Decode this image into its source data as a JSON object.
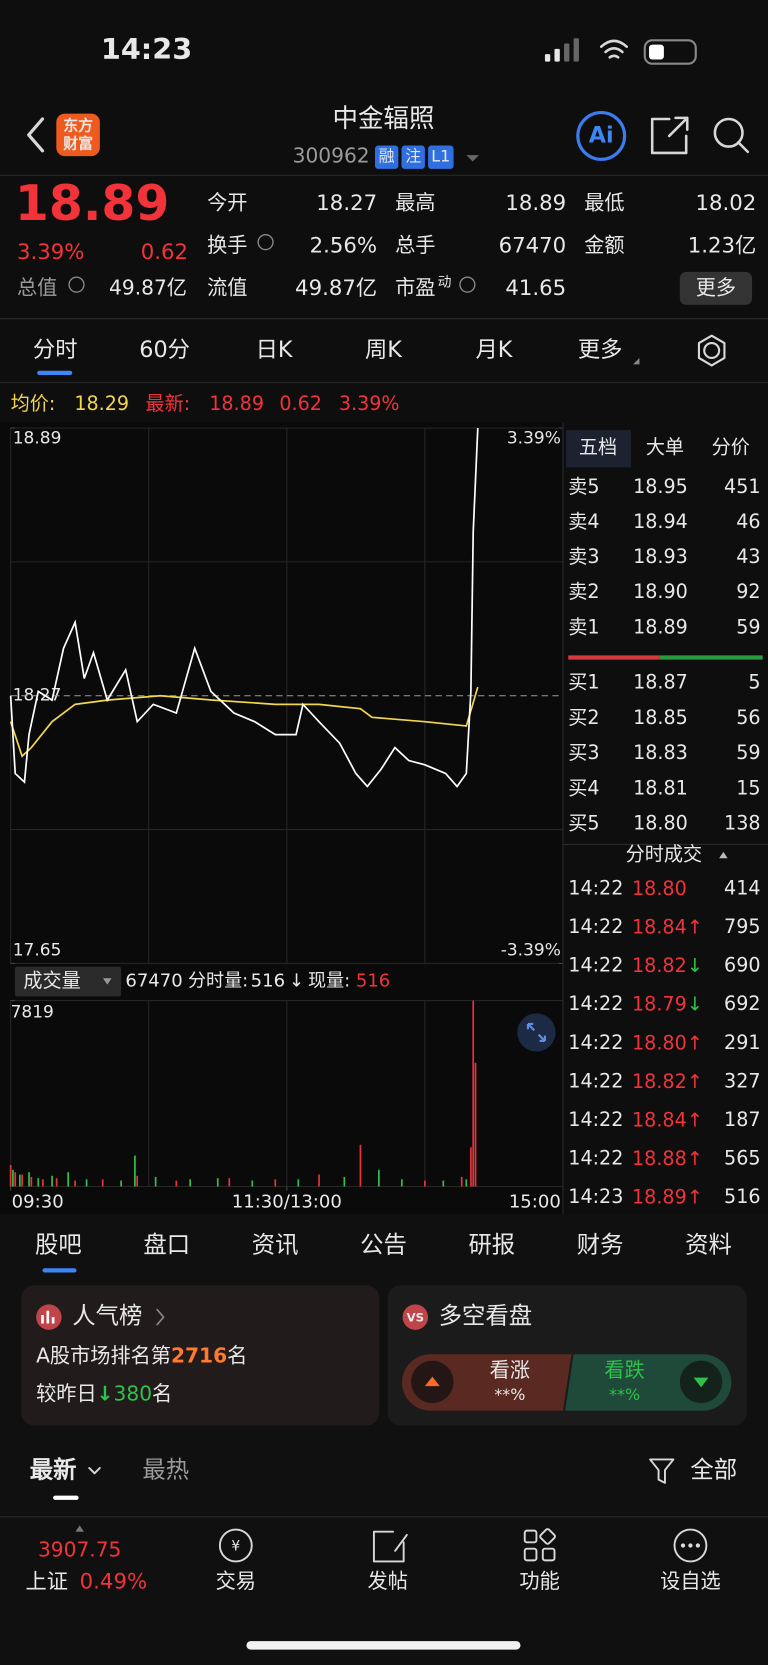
{
  "status_bar": {
    "time": "14:23"
  },
  "header": {
    "logo": [
      "东方",
      "财富"
    ],
    "title": "中金辐照",
    "code": "300962",
    "badges": [
      "融",
      "注",
      "L1"
    ],
    "ai": "Ai"
  },
  "quote": {
    "price": "18.89",
    "change_pct": "3.39%",
    "change": "0.62",
    "market_cap_label": "总值",
    "market_cap": "49.87亿",
    "stats": [
      {
        "label": "今开",
        "value": "18.27"
      },
      {
        "label": "最高",
        "value": "18.89"
      },
      {
        "label": "最低",
        "value": "18.02"
      },
      {
        "label": "换手",
        "value": "2.56%"
      },
      {
        "label": "总手",
        "value": "67470"
      },
      {
        "label": "金额",
        "value": "1.23亿"
      },
      {
        "label": "流值",
        "value": "49.87亿"
      },
      {
        "label": "市盈",
        "sup": "动",
        "value": "41.65"
      }
    ],
    "more": "更多"
  },
  "tabs": [
    "分时",
    "60分",
    "日K",
    "周K",
    "月K",
    "更多"
  ],
  "summary": {
    "avg_label": "均价:",
    "avg": "18.29",
    "latest_label": "最新:",
    "latest": "18.89",
    "change": "0.62",
    "change_pct": "3.39%"
  },
  "intraday": {
    "xlim": [
      0,
      240
    ],
    "xticks": [
      {
        "value": 0,
        "label": "09:30"
      },
      {
        "value": 120,
        "label": "11:30/13:00"
      },
      {
        "value": 240,
        "label": "15:00"
      }
    ],
    "ylim": [
      17.65,
      18.89
    ],
    "yticks": [
      17.65,
      18.27,
      18.89
    ],
    "y2lim": [
      -3.39,
      3.39
    ],
    "y2ticks": [
      {
        "value": -3.39,
        "label": "-3.39%"
      },
      {
        "value": 3.39,
        "label": "3.39%"
      }
    ],
    "price": {
      "color": "#ffffff",
      "x": [
        0,
        2,
        6,
        8,
        12,
        18,
        23,
        28,
        32,
        36,
        42,
        50,
        55,
        62,
        72,
        80,
        87,
        97,
        106,
        115,
        124,
        127,
        134,
        143,
        150,
        155,
        161,
        167,
        173,
        180,
        189,
        194,
        198,
        200,
        201,
        203
      ],
      "values": [
        18.27,
        18.09,
        18.07,
        18.18,
        18.28,
        18.26,
        18.38,
        18.44,
        18.31,
        18.37,
        18.26,
        18.33,
        18.21,
        18.25,
        18.23,
        18.38,
        18.28,
        18.23,
        18.21,
        18.18,
        18.18,
        18.25,
        18.21,
        18.16,
        18.09,
        18.06,
        18.1,
        18.15,
        18.12,
        18.11,
        18.09,
        18.06,
        18.09,
        18.28,
        18.65,
        18.89
      ]
    },
    "avg": {
      "color": "#f2d64b",
      "x": [
        0,
        5,
        9,
        18,
        28,
        42,
        65,
        88,
        115,
        134,
        152,
        157,
        180,
        198,
        203
      ],
      "values": [
        18.21,
        18.13,
        18.15,
        18.21,
        18.25,
        18.26,
        18.27,
        18.26,
        18.25,
        18.25,
        18.24,
        18.22,
        18.21,
        18.2,
        18.29
      ]
    },
    "volume_header": {
      "label": "成交量",
      "total": "67470",
      "minute_label": "分时量:",
      "minute": "516",
      "arrow": "↓",
      "current_label": "现量:",
      "current": "516"
    },
    "volume": {
      "ylim": [
        0,
        7819
      ],
      "yticks": [
        7819
      ],
      "up": {
        "color": "#e8333a",
        "x": [
          0,
          2,
          5,
          9,
          14,
          20,
          28,
          40,
          55,
          72,
          95,
          115,
          134,
          152,
          180,
          196,
          200,
          201,
          202
        ],
        "values": [
          900,
          600,
          500,
          400,
          300,
          350,
          250,
          300,
          450,
          250,
          350,
          300,
          500,
          1750,
          250,
          400,
          1650,
          7819,
          5200
        ]
      },
      "down": {
        "color": "#2ec24a",
        "x": [
          1,
          4,
          8,
          12,
          18,
          25,
          33,
          48,
          54,
          63,
          78,
          90,
          105,
          125,
          145,
          160,
          170,
          188,
          198
        ],
        "values": [
          700,
          500,
          600,
          350,
          450,
          600,
          300,
          250,
          1300,
          400,
          300,
          350,
          250,
          300,
          400,
          700,
          300,
          250,
          300
        ]
      }
    }
  },
  "order_book": {
    "tabs": [
      "五档",
      "大单",
      "分价"
    ],
    "asks": [
      {
        "label": "卖5",
        "price": "18.95",
        "volume": "451"
      },
      {
        "label": "卖4",
        "price": "18.94",
        "volume": "46"
      },
      {
        "label": "卖3",
        "price": "18.93",
        "volume": "43"
      },
      {
        "label": "卖2",
        "price": "18.90",
        "volume": "92"
      },
      {
        "label": "卖1",
        "price": "18.89",
        "volume": "59"
      }
    ],
    "bids": [
      {
        "label": "买1",
        "price": "18.87",
        "volume": "5"
      },
      {
        "label": "买2",
        "price": "18.85",
        "volume": "56"
      },
      {
        "label": "买3",
        "price": "18.83",
        "volume": "59"
      },
      {
        "label": "买4",
        "price": "18.81",
        "volume": "15"
      },
      {
        "label": "买5",
        "price": "18.80",
        "volume": "138"
      }
    ]
  },
  "trades": {
    "title": "分时成交",
    "rows": [
      {
        "time": "14:22",
        "price": "18.80",
        "volume": "414",
        "color": "#f2333a"
      },
      {
        "time": "14:22",
        "price": "18.84",
        "arrow": "↑",
        "volume": "795",
        "color": "#f2333a"
      },
      {
        "time": "14:22",
        "price": "18.82",
        "arrow": "↓",
        "volume": "690",
        "color": "#2ec24a"
      },
      {
        "time": "14:22",
        "price": "18.79",
        "arrow": "↓",
        "volume": "692",
        "color": "#2ec24a"
      },
      {
        "time": "14:22",
        "price": "18.80",
        "arrow": "↑",
        "volume": "291",
        "color": "#f2333a"
      },
      {
        "time": "14:22",
        "price": "18.82",
        "arrow": "↑",
        "volume": "327",
        "color": "#f2333a"
      },
      {
        "time": "14:22",
        "price": "18.84",
        "arrow": "↑",
        "volume": "187",
        "color": "#f2333a"
      },
      {
        "time": "14:22",
        "price": "18.88",
        "arrow": "↑",
        "volume": "565",
        "color": "#f2333a"
      },
      {
        "time": "14:23",
        "price": "18.89",
        "arrow": "↑",
        "volume": "516",
        "color": "#f2333a"
      }
    ]
  },
  "sections": [
    "股吧",
    "盘口",
    "资讯",
    "公告",
    "研报",
    "财务",
    "资料"
  ],
  "popularity": {
    "title": "人气榜",
    "rank_prefix": "A股市场排名第",
    "rank": "2716",
    "rank_suffix": "名",
    "change_prefix": "较昨日",
    "change_arrow": "↓",
    "change": "380",
    "change_suffix": "名"
  },
  "sentiment": {
    "title": "多空看盘",
    "bull": "看涨",
    "bull_pct": "**%",
    "bear": "看跌",
    "bear_pct": "**%"
  },
  "feed": {
    "sort": "最新",
    "hot": "最热",
    "filter": "全部"
  },
  "nav": {
    "index": {
      "value": "3907.75",
      "name": "上证",
      "change": "0.49%"
    },
    "items": [
      "交易",
      "发帖",
      "功能",
      "设自选"
    ]
  }
}
